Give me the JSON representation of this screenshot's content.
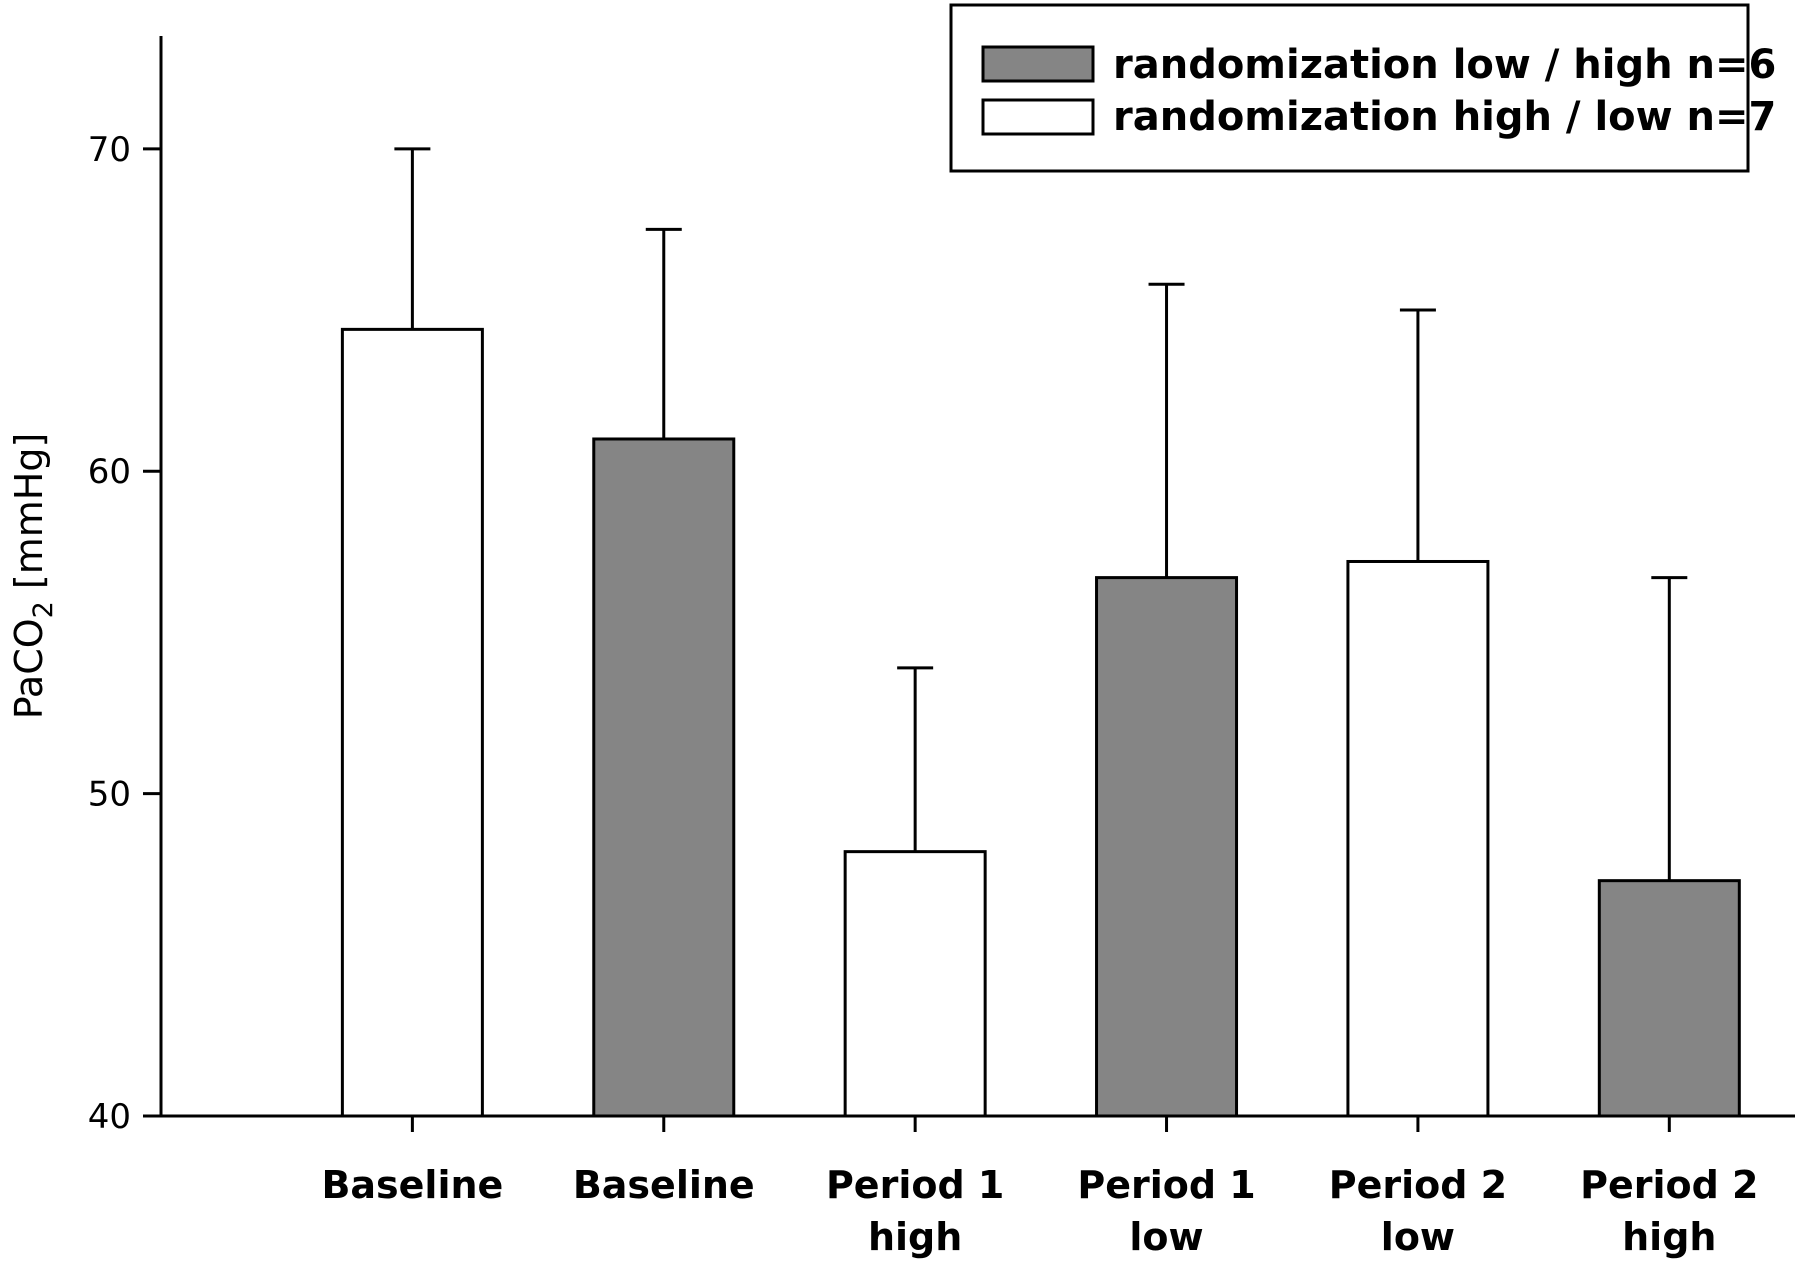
{
  "chart_data": {
    "type": "bar",
    "ylabel_parts": {
      "main": "PaCO",
      "sub": "2",
      "unit": " [mmHg]"
    },
    "ylim": [
      40,
      73.5
    ],
    "yticks": [
      "40",
      "50",
      "60",
      "70"
    ],
    "bars": [
      {
        "label_lines": [
          "Baseline"
        ],
        "series": "randomization high / low n=7",
        "value": 64.4,
        "error_upper": 70.0
      },
      {
        "label_lines": [
          "Baseline"
        ],
        "series": "randomization low / high n=6",
        "value": 61.0,
        "error_upper": 67.5
      },
      {
        "label_lines": [
          "Period 1",
          "high"
        ],
        "series": "randomization high / low n=7",
        "value": 48.2,
        "error_upper": 53.9
      },
      {
        "label_lines": [
          "Period 1",
          "low"
        ],
        "series": "randomization low / high n=6",
        "value": 56.7,
        "error_upper": 65.8
      },
      {
        "label_lines": [
          "Period 2",
          "low"
        ],
        "series": "randomization high / low n=7",
        "value": 57.2,
        "error_upper": 65.0
      },
      {
        "label_lines": [
          "Period 2",
          "high"
        ],
        "series": "randomization low / high n=6",
        "value": 47.3,
        "error_upper": 56.7
      }
    ],
    "legend": {
      "placement": "top-right",
      "entries": [
        {
          "name": "randomization low / high n=6",
          "color": "#858585"
        },
        {
          "name": "randomization high / low n=7",
          "color": "#ffffff"
        }
      ]
    },
    "grid": false
  }
}
